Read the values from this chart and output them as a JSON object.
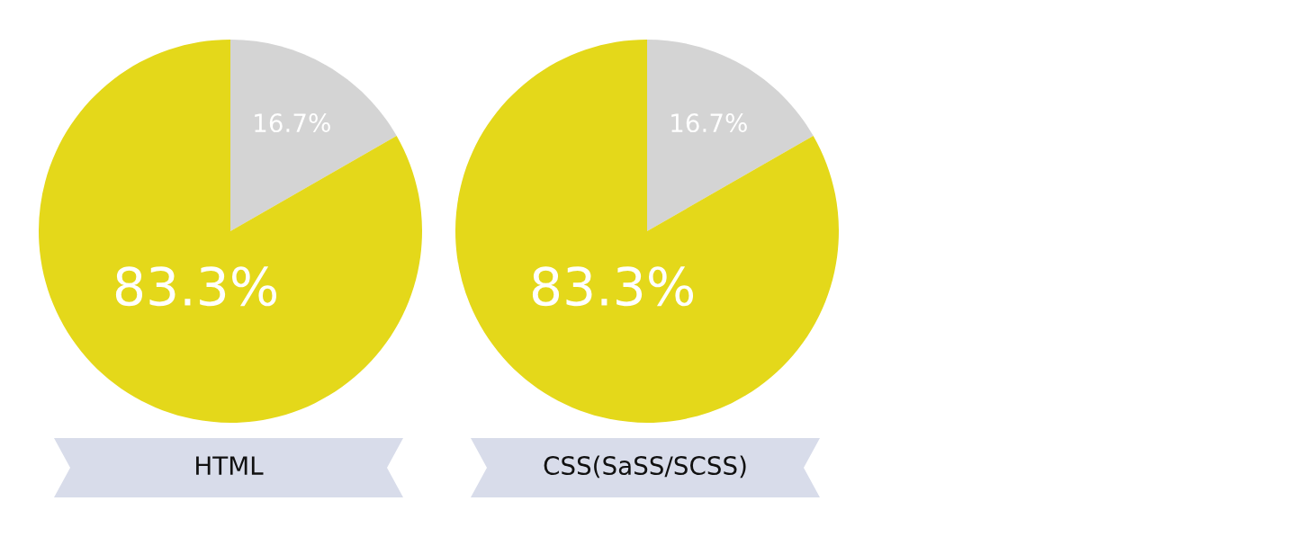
{
  "chart_data": [
    {
      "type": "pie",
      "title": "HTML",
      "categories": [
        null,
        null
      ],
      "values": [
        16.7,
        83.3
      ],
      "colors": [
        "#d4d4d4",
        "#e4d81a"
      ],
      "value_labels": [
        "16.7%",
        "83.3%"
      ]
    },
    {
      "type": "pie",
      "title": "CSS(SaSS/SCSS)",
      "categories": [
        null,
        null
      ],
      "values": [
        16.7,
        83.3
      ],
      "colors": [
        "#d4d4d4",
        "#e4d81a"
      ],
      "value_labels": [
        "16.7%",
        "83.3%"
      ]
    }
  ]
}
